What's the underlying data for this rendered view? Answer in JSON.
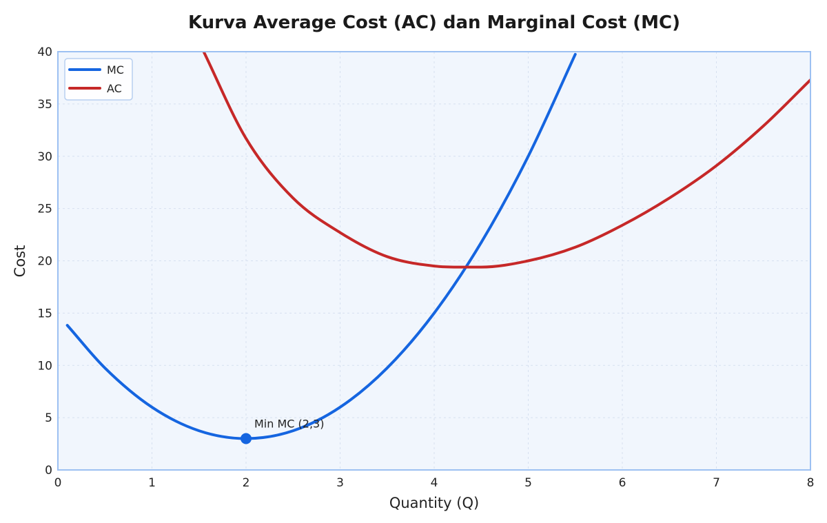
{
  "chart_data": {
    "type": "line",
    "title": "Kurva Average Cost (AC) dan Marginal Cost (MC)",
    "xlabel": "Quantity (Q)",
    "ylabel": "Cost",
    "xlim": [
      0,
      8
    ],
    "ylim": [
      0,
      40
    ],
    "xticks": [
      "0",
      "1",
      "2",
      "3",
      "4",
      "5",
      "6",
      "7",
      "8"
    ],
    "yticks": [
      "0",
      "5",
      "10",
      "15",
      "20",
      "25",
      "30",
      "35",
      "40"
    ],
    "grid": true,
    "legend_position": "top-left",
    "series": [
      {
        "name": "MC",
        "color": "#1565e0",
        "x": [
          0.1,
          0.5,
          1.0,
          1.5,
          2.0,
          2.5,
          3.0,
          3.5,
          4.0,
          4.5,
          5.0,
          5.5
        ],
        "y": [
          13.83,
          9.75,
          6.0,
          3.75,
          3.0,
          3.75,
          6.0,
          9.75,
          15.0,
          21.75,
          30.0,
          39.75
        ]
      },
      {
        "name": "AC",
        "color": "#c62828",
        "x": [
          1.55,
          2.0,
          2.5,
          3.0,
          3.5,
          4.0,
          4.33,
          4.5,
          5.0,
          5.5,
          6.0,
          6.5,
          7.0,
          7.5,
          8.0
        ],
        "y": [
          40.0,
          31.7,
          26.0,
          22.7,
          20.4,
          19.5,
          19.4,
          19.4,
          20.0,
          21.3,
          23.4,
          26.0,
          29.1,
          32.9,
          37.3
        ]
      }
    ],
    "annotations": [
      {
        "label": "Min MC (2,3)",
        "x": 2,
        "y": 3,
        "color": "#1565e0"
      }
    ]
  }
}
